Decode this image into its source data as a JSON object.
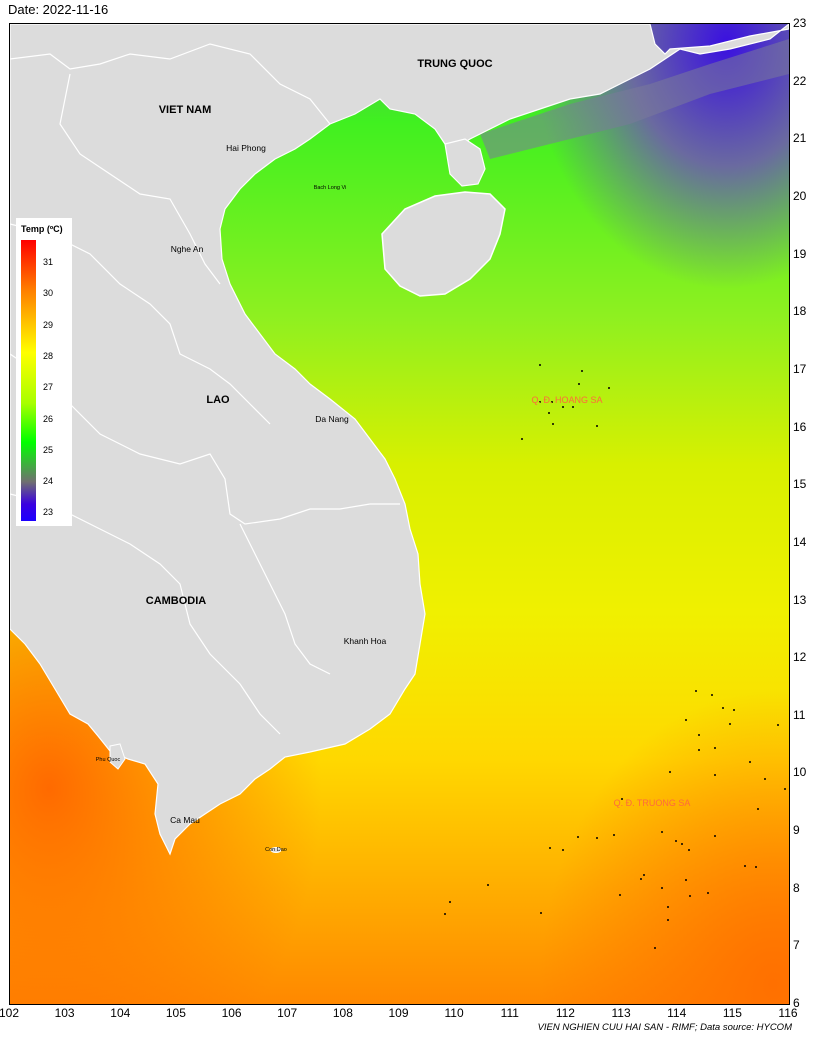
{
  "date_label": "Date: 2022-11-16",
  "credit": "VIEN NGHIEN CUU HAI SAN - RIMF; Data source: HYCOM",
  "legend": {
    "title": "Temp (ºC)",
    "ticks": [
      "31",
      "30",
      "29",
      "28",
      "27",
      "26",
      "25",
      "24",
      "23"
    ],
    "colors": {
      "max": "#ff0000",
      "mid": "#ffff00",
      "low": "#00ff00",
      "min": "#1c00ff"
    }
  },
  "axes": {
    "x_ticks": [
      "102",
      "103",
      "104",
      "105",
      "106",
      "107",
      "108",
      "109",
      "110",
      "111",
      "112",
      "113",
      "114",
      "115",
      "116"
    ],
    "y_ticks": [
      "23",
      "22",
      "21",
      "20",
      "19",
      "18",
      "17",
      "16",
      "15",
      "14",
      "13",
      "12",
      "11",
      "10",
      "9",
      "8",
      "7",
      "6"
    ]
  },
  "places": {
    "trung_quoc": "TRUNG QUOC",
    "viet_nam": "VIET NAM",
    "lao": "LAO",
    "cambodia": "CAMBODIA",
    "hai_phong": "Hai Phong",
    "bach_long_vi": "Bach Long Vi",
    "nghe_an": "Nghe An",
    "da_nang": "Da Nang",
    "khanh_hoa": "Khanh Hoa",
    "phu_quoc": "Phu Quoc",
    "ca_mau": "Ca Mau",
    "con_dao": "Con Dao",
    "hoang_sa": "Q. Đ. HOANG SA",
    "truong_sa": "Q. Đ. TRUONG SA"
  },
  "colors": {
    "land": "#dcdcdc",
    "border": "#ffffff",
    "islands_label": "#ff6a3c"
  }
}
